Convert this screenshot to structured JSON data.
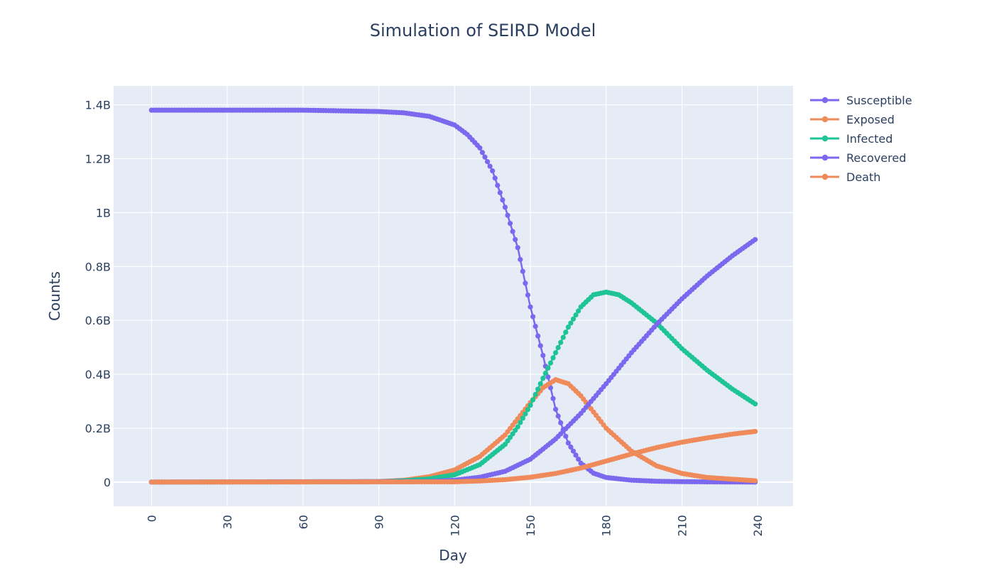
{
  "chart_data": {
    "type": "line",
    "title": "Simulation of SEIRD Model",
    "xlabel": "Day",
    "ylabel": "Counts",
    "xlim": [
      -15,
      254
    ],
    "ylim": [
      -90000000,
      1470000000
    ],
    "x_ticks": [
      0,
      30,
      60,
      90,
      120,
      150,
      180,
      210,
      240
    ],
    "y_ticks": [
      0,
      200000000,
      400000000,
      600000000,
      800000000,
      1000000000,
      1200000000,
      1400000000
    ],
    "y_tick_labels": [
      "0",
      "0.2B",
      "0.4B",
      "0.6B",
      "0.8B",
      "1B",
      "1.2B",
      "1.4B"
    ],
    "grid": true,
    "legend_position": "top-right",
    "series": [
      {
        "name": "Susceptible",
        "color": "#7b68ee",
        "x": [
          0,
          60,
          90,
          100,
          110,
          120,
          125,
          130,
          135,
          140,
          145,
          150,
          155,
          160,
          165,
          170,
          175,
          180,
          190,
          200,
          210,
          220,
          239
        ],
        "y": [
          1380000000,
          1380000000,
          1375000000,
          1370000000,
          1357000000,
          1325000000,
          1290000000,
          1240000000,
          1155000000,
          1020000000,
          870000000,
          650000000,
          470000000,
          270000000,
          145000000,
          70000000,
          33000000,
          17000000,
          7000000,
          3000000,
          1500000,
          800000,
          0
        ]
      },
      {
        "name": "Exposed",
        "color": "#ef8a5b",
        "x": [
          0,
          90,
          100,
          110,
          120,
          130,
          140,
          145,
          150,
          155,
          160,
          165,
          170,
          175,
          180,
          190,
          200,
          210,
          220,
          239
        ],
        "y": [
          0,
          2000000,
          7000000,
          20000000,
          45000000,
          95000000,
          175000000,
          235000000,
          295000000,
          350000000,
          380000000,
          365000000,
          320000000,
          260000000,
          200000000,
          115000000,
          60000000,
          32000000,
          17000000,
          5000000
        ]
      },
      {
        "name": "Infected",
        "color": "#1ec496",
        "x": [
          0,
          90,
          100,
          110,
          120,
          130,
          140,
          145,
          150,
          155,
          160,
          165,
          170,
          175,
          180,
          185,
          190,
          200,
          210,
          220,
          230,
          239
        ],
        "y": [
          0,
          1000000,
          5000000,
          12000000,
          27000000,
          65000000,
          140000000,
          205000000,
          285000000,
          385000000,
          480000000,
          575000000,
          650000000,
          695000000,
          705000000,
          695000000,
          665000000,
          590000000,
          495000000,
          415000000,
          345000000,
          290000000
        ]
      },
      {
        "name": "Recovered",
        "color": "#7b68ee",
        "x": [
          0,
          110,
          120,
          130,
          140,
          150,
          160,
          170,
          180,
          190,
          200,
          210,
          220,
          230,
          239
        ],
        "y": [
          0,
          2000000,
          7000000,
          18000000,
          40000000,
          85000000,
          160000000,
          255000000,
          365000000,
          480000000,
          585000000,
          680000000,
          765000000,
          840000000,
          900000000
        ]
      },
      {
        "name": "Death",
        "color": "#ef8a5b",
        "x": [
          0,
          120,
          130,
          140,
          150,
          160,
          170,
          180,
          190,
          200,
          210,
          220,
          230,
          239
        ],
        "y": [
          0,
          1000000,
          4000000,
          9000000,
          18000000,
          32000000,
          52000000,
          78000000,
          104000000,
          128000000,
          148000000,
          164000000,
          178000000,
          188000000
        ]
      }
    ]
  }
}
